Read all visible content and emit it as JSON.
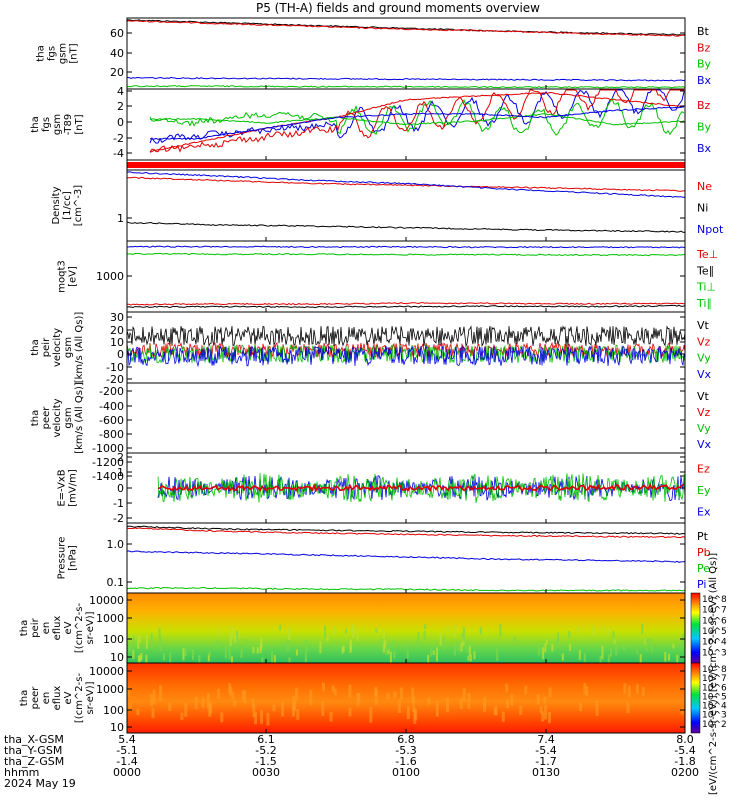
{
  "title": "P5 (TH-A) fields and ground moments overview",
  "panels": [
    {
      "id": "fgs-mag",
      "ylabel": [
        "tha",
        "fgs",
        "gsm",
        "[nT]"
      ],
      "ticks": [
        "60",
        "40",
        "20"
      ],
      "legend": [
        {
          "text": "Bt",
          "color": "#000000"
        },
        {
          "text": "Bz",
          "color": "#e00000"
        },
        {
          "text": "By",
          "color": "#00c000"
        },
        {
          "text": "Bx",
          "color": "#0000e0"
        }
      ]
    },
    {
      "id": "fgs-dc",
      "ylabel": [
        "tha",
        "fgs",
        "gsm",
        "-T89",
        "[nT]"
      ],
      "ticks": [
        "4",
        "2",
        "0",
        "-2",
        "-4"
      ],
      "legend": [
        {
          "text": "Bz",
          "color": "#e00000"
        },
        {
          "text": "By",
          "color": "#00c000"
        },
        {
          "text": "Bx",
          "color": "#0000e0"
        }
      ]
    },
    {
      "id": "flags",
      "ylabel": [],
      "ticks": [],
      "legend": []
    },
    {
      "id": "density",
      "ylabel": [
        "Density",
        "[1/cc]",
        "[cm^-3]"
      ],
      "ticks": [
        "1"
      ],
      "legend": [
        {
          "text": "Ne",
          "color": "#e00000"
        },
        {
          "text": "Ni",
          "color": "#000000"
        },
        {
          "text": "Npot",
          "color": "#0000e0"
        }
      ]
    },
    {
      "id": "temps",
      "ylabel": [
        "moqt3",
        "[eV]"
      ],
      "ticks": [
        "1000"
      ],
      "legend": [
        {
          "text": "Te⊥",
          "color": "#e00000"
        },
        {
          "text": "Te∥",
          "color": "#000000"
        },
        {
          "text": "Ti⊥",
          "color": "#00c000"
        },
        {
          "text": "Ti∥",
          "color": "#00c000"
        }
      ]
    },
    {
      "id": "peir-vel",
      "ylabel": [
        "tha",
        "peir",
        "velocity",
        "gsm",
        "[km/s (All Qs)]"
      ],
      "ticks": [
        "30",
        "20",
        "10",
        "0",
        "-10",
        "-20"
      ],
      "legend": [
        {
          "text": "Vt",
          "color": "#000000"
        },
        {
          "text": "Vz",
          "color": "#e00000"
        },
        {
          "text": "Vy",
          "color": "#00c000"
        },
        {
          "text": "Vx",
          "color": "#0000e0"
        }
      ]
    },
    {
      "id": "peer-vel",
      "ylabel": [
        "tha",
        "peer",
        "velocity",
        "gsm",
        "[km/s (All Qs)]"
      ],
      "ticks": [
        "-200",
        "-400",
        "-600",
        "-800",
        "-1000",
        "-1200",
        "-1400"
      ],
      "legend": [
        {
          "text": "Vt",
          "color": "#000000"
        },
        {
          "text": "Vz",
          "color": "#e00000"
        },
        {
          "text": "Vy",
          "color": "#00c000"
        },
        {
          "text": "Vx",
          "color": "#0000e0"
        }
      ]
    },
    {
      "id": "efield",
      "ylabel": [
        "E=-VxB",
        "[mV/m]"
      ],
      "ticks": [
        "2",
        "1",
        "0",
        "-1",
        "-2"
      ],
      "legend": [
        {
          "text": "Ez",
          "color": "#e00000"
        },
        {
          "text": "Ey",
          "color": "#00c000"
        },
        {
          "text": "Ex",
          "color": "#0000e0"
        }
      ]
    },
    {
      "id": "pressure",
      "ylabel": [
        "Pressure",
        "[nPa]"
      ],
      "ticks": [
        "1.0",
        "0.1"
      ],
      "legend": [
        {
          "text": "Pt",
          "color": "#000000"
        },
        {
          "text": "Pb",
          "color": "#e00000"
        },
        {
          "text": "Pe",
          "color": "#00c000"
        },
        {
          "text": "Pi",
          "color": "#0000e0"
        }
      ]
    },
    {
      "id": "peir-spec",
      "ylabel": [
        "tha",
        "peir",
        "en",
        "eflux",
        "eV",
        "[(cm^2-s-",
        "sr-eV)]"
      ],
      "ticks": [
        "10000",
        "1000",
        "100",
        "10"
      ],
      "legend": []
    },
    {
      "id": "peer-spec",
      "ylabel": [
        "tha",
        "peer",
        "en",
        "eflux",
        "eV",
        "[(cm^2-s-",
        "sr-eV)]"
      ],
      "ticks": [
        "10000",
        "1000",
        "100",
        "10"
      ],
      "legend": []
    }
  ],
  "colorbar": {
    "ticks_top": [
      "10^8",
      "10^7",
      "10^6",
      "10^5",
      "10^4",
      "10^3"
    ],
    "ticks_bottom": [
      "10^8",
      "10^7",
      "10^6",
      "10^5",
      "10^4",
      "10^3",
      "10^2"
    ],
    "label": "[eV/(cm^2-s-sr-eV)] [eV/(cm^2-s-sr-eV) (All Qs)]"
  },
  "footer": {
    "row_labels": [
      "tha_X-GSM",
      "tha_Y-GSM",
      "tha_Z-GSM",
      "hhmm",
      "2024 May 19"
    ],
    "columns": [
      [
        "5.4",
        "-5.1",
        "-1.4",
        "0000"
      ],
      [
        "6.1",
        "-5.2",
        "-1.5",
        "0030"
      ],
      [
        "6.8",
        "-5.3",
        "-1.6",
        "0100"
      ],
      [
        "7.4",
        "-5.4",
        "-1.7",
        "0130"
      ],
      [
        "8.0",
        "-5.4",
        "-1.8",
        "0200"
      ]
    ]
  },
  "chart_data": {
    "type": "line",
    "title": "P5 (TH-A) fields and ground moments overview",
    "x_ticks": [
      "0000",
      "0030",
      "0100",
      "0130",
      "0200"
    ],
    "xlabel": "hhmm",
    "date": "2024 May 19",
    "series": [
      {
        "panel": "fgs-mag",
        "name": "Bt",
        "color": "#000000",
        "values": [
          74,
          71,
          68,
          65,
          62,
          60,
          58
        ]
      },
      {
        "panel": "fgs-mag",
        "name": "Bz",
        "color": "#e00000",
        "values": [
          73,
          70,
          67,
          64,
          62,
          59,
          57
        ]
      },
      {
        "panel": "fgs-mag",
        "name": "Bx",
        "color": "#0000e0",
        "values": [
          12,
          11.5,
          11,
          10.5,
          10,
          9.5,
          9
        ]
      },
      {
        "panel": "fgs-mag",
        "name": "By",
        "color": "#00c000",
        "values": [
          3,
          3,
          2.5,
          2.5,
          2,
          2,
          2
        ]
      },
      {
        "panel": "fgs-dc",
        "name": "Bz",
        "color": "#e00000",
        "values": [
          -5,
          -3,
          -1,
          0.5,
          3,
          3.5,
          4,
          3,
          2
        ]
      },
      {
        "panel": "fgs-dc",
        "name": "By",
        "color": "#00c000",
        "values": [
          0.2,
          0.3,
          -0.3,
          0.5,
          -0.5,
          0,
          1,
          -0.5,
          0
        ]
      },
      {
        "panel": "fgs-dc",
        "name": "Bx",
        "color": "#0000e0",
        "values": [
          -2.5,
          -2.5,
          -1,
          0.5,
          1,
          1,
          0.5,
          1.5,
          2
        ]
      },
      {
        "panel": "density",
        "name": "Ne",
        "color": "#e00000",
        "values": [
          2.6,
          2.4,
          2.2,
          2.1,
          2.0,
          1.9,
          1.8
        ]
      },
      {
        "panel": "density",
        "name": "Ni",
        "color": "#0000e0",
        "values": [
          3.0,
          2.7,
          2.4,
          2.2,
          1.9,
          1.7,
          1.5
        ]
      },
      {
        "panel": "density",
        "name": "Npot",
        "color": "#000000",
        "values": [
          0.75,
          0.7,
          0.68,
          0.65,
          0.62,
          0.6,
          0.58
        ]
      },
      {
        "panel": "temps",
        "name": "Te⊥",
        "color": "#0000e0",
        "values": [
          6500,
          6500,
          6400,
          6400,
          6300,
          6300,
          6200
        ]
      },
      {
        "panel": "temps",
        "name": "Te∥",
        "color": "#00c000",
        "values": [
          4300,
          4200,
          4200,
          4100,
          4100,
          4000,
          4000
        ]
      },
      {
        "panel": "temps",
        "name": "Ti⊥",
        "color": "#e00000",
        "values": [
          230,
          240,
          235,
          250,
          245,
          240,
          245
        ]
      },
      {
        "panel": "temps",
        "name": "Ti∥",
        "color": "#000000",
        "values": [
          200,
          205,
          200,
          205,
          210,
          205,
          215
        ]
      },
      {
        "panel": "efield",
        "name": "Ez",
        "color": "#e00000",
        "values": [
          0,
          0,
          0,
          0,
          0,
          0,
          0.1
        ]
      },
      {
        "panel": "pressure",
        "name": "Pt",
        "color": "#000000",
        "values": [
          2.2,
          1.9,
          1.8,
          1.7,
          1.6,
          1.55,
          1.5
        ]
      },
      {
        "panel": "pressure",
        "name": "Pb",
        "color": "#e00000",
        "values": [
          2.0,
          1.7,
          1.55,
          1.45,
          1.35,
          1.3,
          1.25
        ]
      },
      {
        "panel": "pressure",
        "name": "Pi",
        "color": "#0000e0",
        "values": [
          0.6,
          0.55,
          0.5,
          0.45,
          0.4,
          0.38,
          0.35
        ]
      },
      {
        "panel": "pressure",
        "name": "Pe",
        "color": "#00c000",
        "values": [
          0.09,
          0.09,
          0.085,
          0.085,
          0.08,
          0.08,
          0.08
        ]
      }
    ]
  }
}
